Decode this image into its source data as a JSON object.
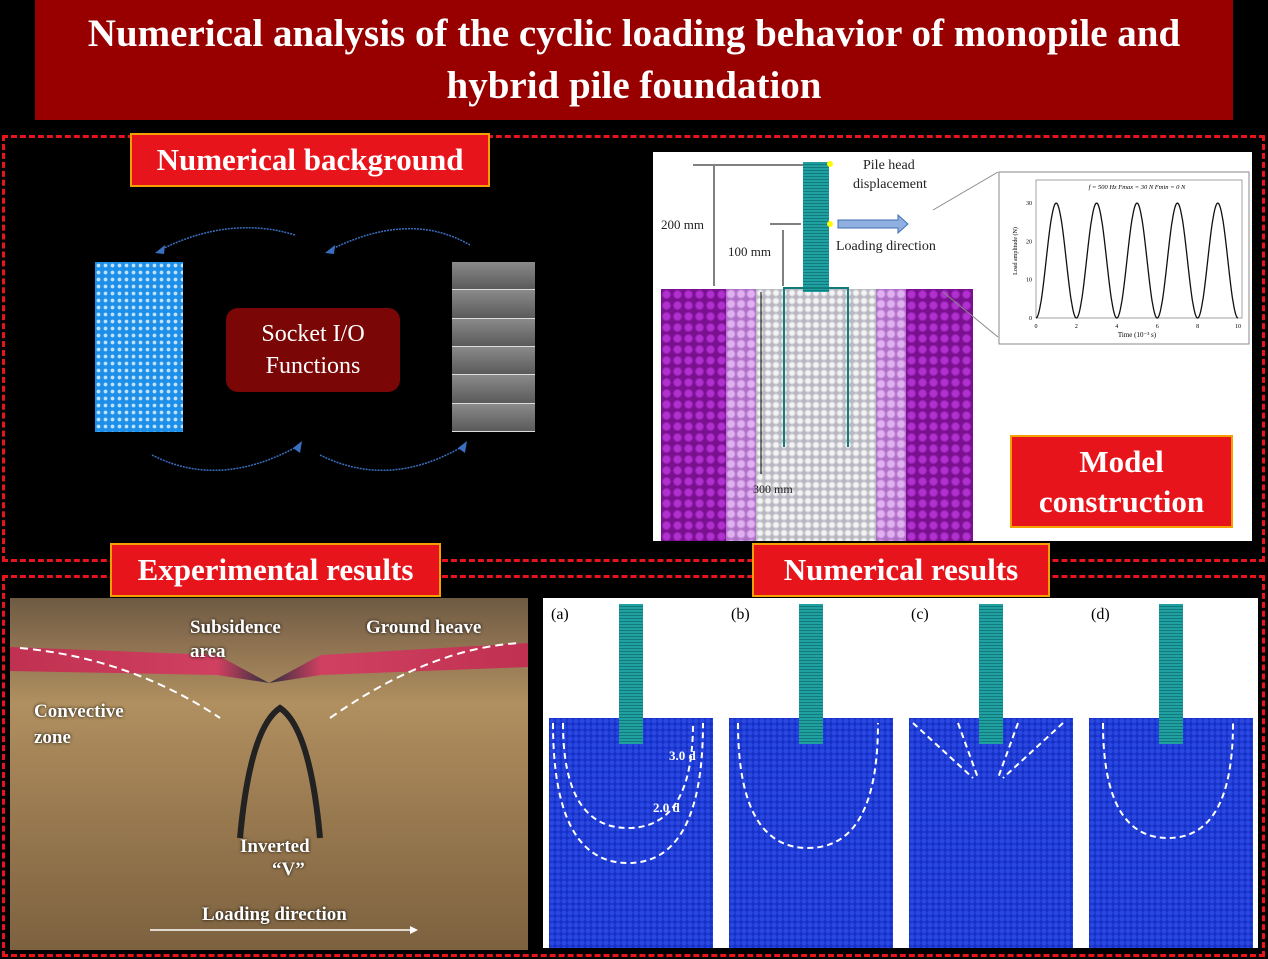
{
  "title": "Numerical analysis of the cyclic loading behavior of monopile and hybrid pile foundation",
  "sections": {
    "numerical_background": "Numerical background",
    "model_construction": "Model construction",
    "experimental_results": "Experimental results",
    "numerical_results": "Numerical results"
  },
  "socket_box": {
    "line1": "Socket I/O",
    "line2": "Functions"
  },
  "model": {
    "pile_head": "Pile head",
    "displacement": "displacement",
    "dim_200": "200 mm",
    "dim_100": "100 mm",
    "loading_direction": "Loading direction",
    "dim_300": "300 mm",
    "chart": {
      "params": "f = 500 Hz   Fmax = 30 N   Fmin = 0 N",
      "ylabel": "Load amplitude (N)",
      "xlabel": "Time (10⁻³ s)",
      "yticks": [
        "0",
        "10",
        "20",
        "30"
      ],
      "xticks": [
        "0",
        "2",
        "4",
        "6",
        "8",
        "10"
      ],
      "frequency_hz": 500,
      "fmax_n": 30,
      "fmin_n": 0,
      "xlim": [
        0,
        10
      ],
      "ylim": [
        0,
        35
      ]
    }
  },
  "experiment": {
    "subsidence": "Subsidence",
    "area": "area",
    "ground_heave": "Ground heave",
    "convective": "Convective",
    "zone": "zone",
    "inverted": "Inverted",
    "v": "“V”",
    "loading_direction": "Loading direction"
  },
  "numerical": {
    "panels": [
      "(a)",
      "(b)",
      "(c)",
      "(d)"
    ],
    "dim_3d": "3.0 d",
    "dim_2d": "2.0 d"
  },
  "colors": {
    "title_bg": "#980000",
    "label_bg": "#e8141b",
    "dash": "#e8141b",
    "soil_blue": "#1530c8",
    "pile": "#20a0a0"
  }
}
